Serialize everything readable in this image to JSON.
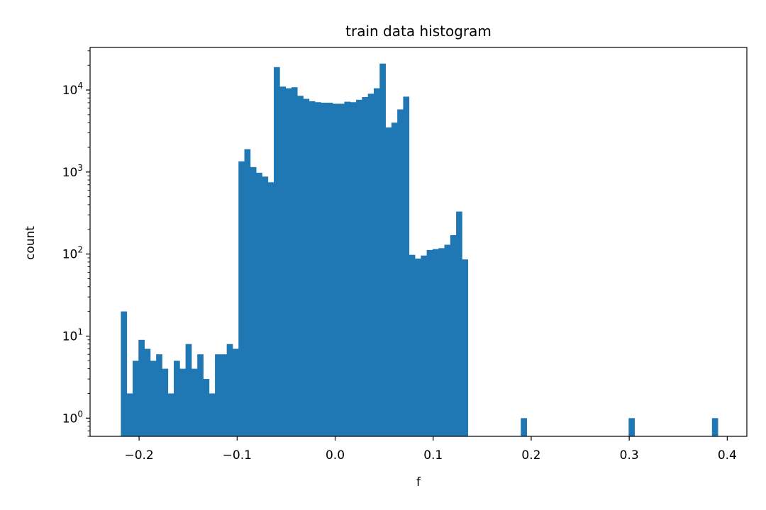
{
  "chart_data": {
    "type": "bar",
    "title": "train data histogram",
    "xlabel": "f",
    "ylabel": "count",
    "xlim": [
      -0.25,
      0.42
    ],
    "ylim": [
      0.6,
      33000
    ],
    "yscale": "log",
    "grid": false,
    "bar_color": "#1f77b4",
    "bin_width": 0.006,
    "x_ticks": [
      {
        "value": -0.2,
        "label": "−0.2"
      },
      {
        "value": -0.1,
        "label": "−0.1"
      },
      {
        "value": 0.0,
        "label": "0.0"
      },
      {
        "value": 0.1,
        "label": "0.1"
      },
      {
        "value": 0.2,
        "label": "0.2"
      },
      {
        "value": 0.3,
        "label": "0.3"
      },
      {
        "value": 0.4,
        "label": "0.4"
      }
    ],
    "y_ticks": [
      {
        "value": 1,
        "base": "10",
        "exp": "0"
      },
      {
        "value": 10,
        "base": "10",
        "exp": "1"
      },
      {
        "value": 100,
        "base": "10",
        "exp": "2"
      },
      {
        "value": 1000,
        "base": "10",
        "exp": "3"
      },
      {
        "value": 10000,
        "base": "10",
        "exp": "4"
      }
    ],
    "bins": [
      {
        "x": -0.2186,
        "count": 20
      },
      {
        "x": -0.2126,
        "count": 2
      },
      {
        "x": -0.2066,
        "count": 5
      },
      {
        "x": -0.2006,
        "count": 9
      },
      {
        "x": -0.1946,
        "count": 7
      },
      {
        "x": -0.1886,
        "count": 5
      },
      {
        "x": -0.1826,
        "count": 6
      },
      {
        "x": -0.1766,
        "count": 4
      },
      {
        "x": -0.1706,
        "count": 2
      },
      {
        "x": -0.1646,
        "count": 5
      },
      {
        "x": -0.1586,
        "count": 4
      },
      {
        "x": -0.1526,
        "count": 8
      },
      {
        "x": -0.1466,
        "count": 4
      },
      {
        "x": -0.1406,
        "count": 6
      },
      {
        "x": -0.1346,
        "count": 3
      },
      {
        "x": -0.1286,
        "count": 2
      },
      {
        "x": -0.1226,
        "count": 6
      },
      {
        "x": -0.1166,
        "count": 6
      },
      {
        "x": -0.1106,
        "count": 8
      },
      {
        "x": -0.1046,
        "count": 7
      },
      {
        "x": -0.0986,
        "count": 1350
      },
      {
        "x": -0.0926,
        "count": 1900
      },
      {
        "x": -0.0866,
        "count": 1150
      },
      {
        "x": -0.0806,
        "count": 980
      },
      {
        "x": -0.0746,
        "count": 880
      },
      {
        "x": -0.0686,
        "count": 750
      },
      {
        "x": -0.0626,
        "count": 19000
      },
      {
        "x": -0.0566,
        "count": 11000
      },
      {
        "x": -0.0506,
        "count": 10500
      },
      {
        "x": -0.0446,
        "count": 10800
      },
      {
        "x": -0.0386,
        "count": 8500
      },
      {
        "x": -0.0326,
        "count": 7800
      },
      {
        "x": -0.0266,
        "count": 7300
      },
      {
        "x": -0.0206,
        "count": 7100
      },
      {
        "x": -0.0146,
        "count": 7000
      },
      {
        "x": -0.0086,
        "count": 7000
      },
      {
        "x": -0.0026,
        "count": 6800
      },
      {
        "x": 0.0034,
        "count": 6800
      },
      {
        "x": 0.0094,
        "count": 7200
      },
      {
        "x": 0.0154,
        "count": 7100
      },
      {
        "x": 0.0214,
        "count": 7600
      },
      {
        "x": 0.0274,
        "count": 8200
      },
      {
        "x": 0.0334,
        "count": 9000
      },
      {
        "x": 0.0394,
        "count": 10500
      },
      {
        "x": 0.0454,
        "count": 21000
      },
      {
        "x": 0.0514,
        "count": 3500
      },
      {
        "x": 0.0574,
        "count": 4000
      },
      {
        "x": 0.0634,
        "count": 5800
      },
      {
        "x": 0.0694,
        "count": 8300
      },
      {
        "x": 0.0754,
        "count": 98
      },
      {
        "x": 0.0814,
        "count": 88
      },
      {
        "x": 0.0874,
        "count": 96
      },
      {
        "x": 0.0934,
        "count": 112
      },
      {
        "x": 0.0994,
        "count": 115
      },
      {
        "x": 0.1054,
        "count": 118
      },
      {
        "x": 0.1114,
        "count": 130
      },
      {
        "x": 0.1174,
        "count": 170
      },
      {
        "x": 0.1234,
        "count": 330
      },
      {
        "x": 0.1294,
        "count": 86
      },
      {
        "x": 0.1894,
        "count": 1
      },
      {
        "x": 0.2994,
        "count": 1
      },
      {
        "x": 0.3844,
        "count": 1
      }
    ]
  }
}
